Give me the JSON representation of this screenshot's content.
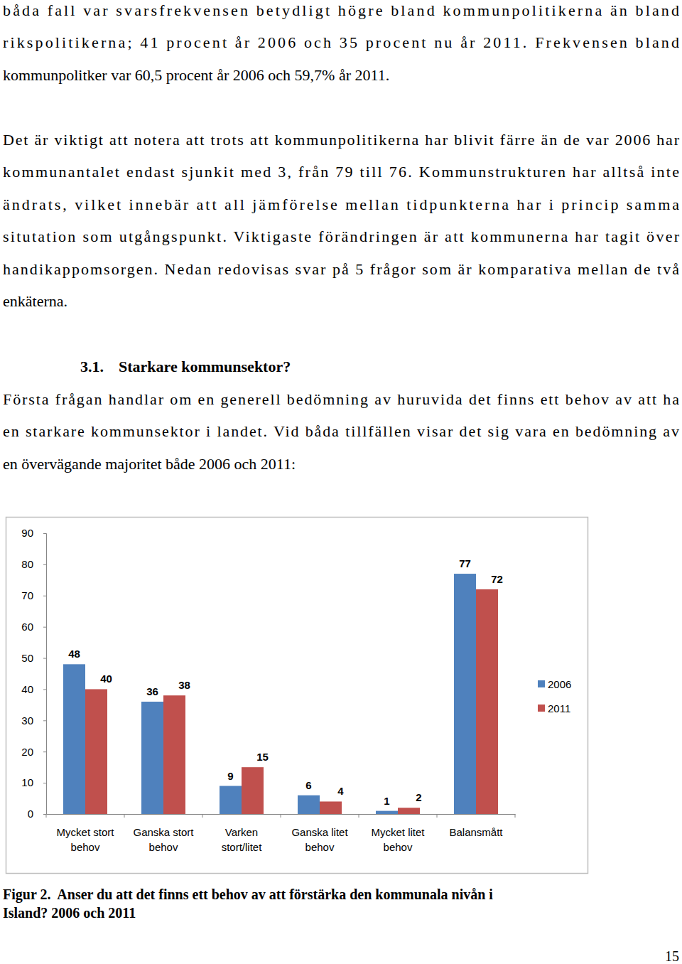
{
  "paragraphs": [
    {
      "lines": [
        "båda fall var svarsfrekvensen betydligt högre bland kommunpolitikerna än bland",
        "rikspolitikerna; 41 procent år 2006 och 35 procent nu år 2011. Frekvensen bland",
        "kommunpolitker var 60,5 procent år 2006 och 59,7% år 2011."
      ]
    },
    {
      "lines": [
        "Det är viktigt att notera att trots att kommunpolitikerna har blivit färre än de var 2006 har",
        "kommunantalet endast sjunkit med 3, från 79 till 76. Kommunstrukturen har alltså inte",
        "ändrats, vilket innebär att all jämförelse mellan tidpunkterna har i princip samma",
        "situtation som utgångspunkt. Viktigaste förändringen är att kommunerna har tagit över",
        "handikappomsorgen. Nedan redovisas svar på 5 frågor som är komparativa mellan de två",
        "enkäterna."
      ]
    },
    {
      "lines": [
        "Första frågan handlar om en generell bedömning av huruvida det finns ett behov av att ha",
        "en starkare kommunsektor i landet. Vid båda tillfällen visar det sig vara en bedömning av",
        "en övervägande majoritet både 2006 och 2011:"
      ]
    }
  ],
  "heading": {
    "number": "3.1.",
    "title": "Starkare kommunsektor?"
  },
  "chart_data": {
    "type": "bar",
    "categories": [
      "Mycket stort behov",
      "Ganska stort behov",
      "Varken stort/litet",
      "Ganska litet behov",
      "Mycket litet behov",
      "Balansmått"
    ],
    "series": [
      {
        "name": "2006",
        "color": "#4f81bd",
        "values": [
          48,
          36,
          9,
          6,
          1,
          77
        ]
      },
      {
        "name": "2011",
        "color": "#c0504d",
        "values": [
          40,
          38,
          15,
          4,
          2,
          72
        ]
      }
    ],
    "ylim": [
      0,
      90
    ],
    "yticks": [
      0,
      10,
      20,
      30,
      40,
      50,
      60,
      70,
      80,
      90
    ],
    "grid": false,
    "legend": "right",
    "data_labels": true
  },
  "caption": {
    "lines": [
      "Figur 2.  Anser du att det finns ett behov av att förstärka den kommunala nivån i",
      "Island? 2006 och 2011"
    ]
  },
  "page_number": "15"
}
